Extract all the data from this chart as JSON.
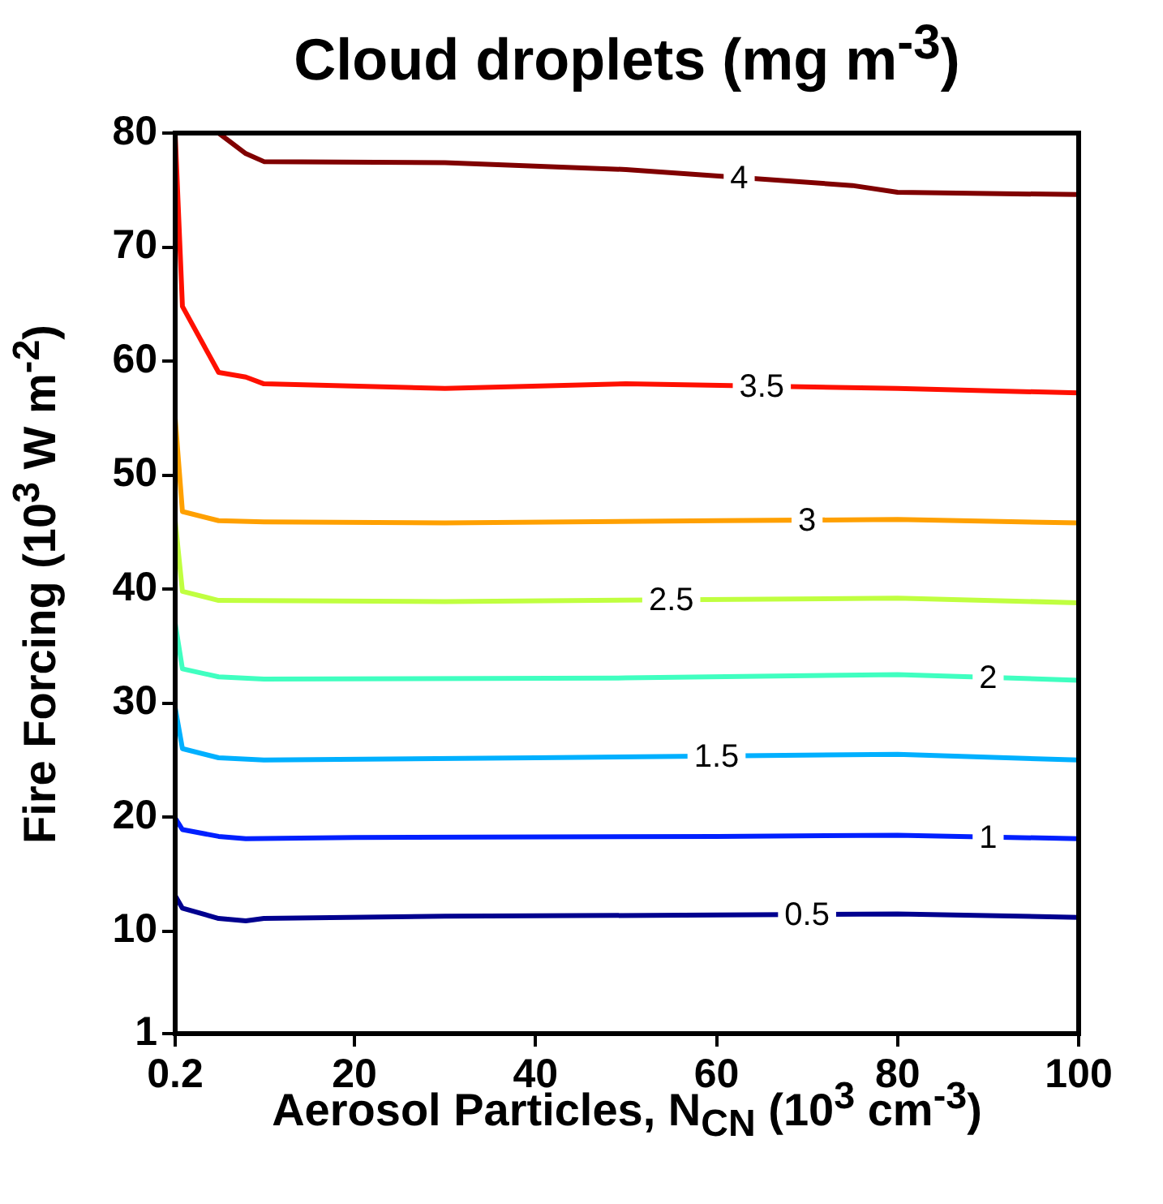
{
  "chart_data": {
    "type": "line",
    "title": "Cloud droplets (mg m$^{-3}$)",
    "xlabel": "Aerosol Particles, N$_{CN}$ (10$^{3}$ cm$^{-3}$)",
    "ylabel": "Fire Forcing (10$^{3}$ W m$^{-2}$)",
    "xlim": [
      0.2,
      100
    ],
    "xticks": [
      0.2,
      20,
      40,
      60,
      80,
      100
    ],
    "ylim": [
      1,
      80
    ],
    "yticks": [
      1,
      10,
      20,
      30,
      40,
      50,
      60,
      70,
      80
    ],
    "grid": false,
    "legend": false,
    "marker": "none",
    "line_style": "solid",
    "series": [
      {
        "name": "0.5",
        "color": "#00008f",
        "x": [
          0.2,
          1,
          5,
          8,
          10,
          30,
          60,
          80,
          100
        ],
        "values": [
          13.1,
          12,
          11.1,
          10.9,
          11.1,
          11.3,
          11.4,
          11.5,
          11.2
        ]
      },
      {
        "name": "1",
        "color": "#0020ff",
        "x": [
          0.2,
          1,
          5,
          8,
          20,
          60,
          80,
          100
        ],
        "values": [
          19.9,
          18.9,
          18.3,
          18.1,
          18.2,
          18.3,
          18.4,
          18.1
        ]
      },
      {
        "name": "1.5",
        "color": "#00b0ff",
        "x": [
          0.2,
          1,
          5,
          10,
          40,
          80,
          100
        ],
        "values": [
          29.6,
          26,
          25.2,
          25,
          25.2,
          25.5,
          25
        ]
      },
      {
        "name": "2",
        "color": "#40ffc0",
        "x": [
          0.2,
          1,
          5,
          10,
          50,
          80,
          100
        ],
        "values": [
          37,
          33,
          32.3,
          32.1,
          32.2,
          32.5,
          32
        ]
      },
      {
        "name": "2.5",
        "color": "#c0ff40",
        "x": [
          0.2,
          1,
          5,
          30,
          80,
          100
        ],
        "values": [
          46,
          39.8,
          39,
          38.9,
          39.2,
          38.8
        ]
      },
      {
        "name": "3",
        "color": "#ffa000",
        "x": [
          0.2,
          1,
          5,
          10,
          30,
          60,
          80,
          100
        ],
        "values": [
          55,
          46.8,
          46,
          45.9,
          45.8,
          46,
          46.1,
          45.8
        ]
      },
      {
        "name": "3.5",
        "color": "#ff1000",
        "x": [
          0.2,
          1,
          5,
          8,
          10,
          30,
          50,
          80,
          100
        ],
        "values": [
          80,
          64.8,
          59,
          58.6,
          58,
          57.6,
          58,
          57.6,
          57.2
        ]
      },
      {
        "name": "4",
        "color": "#800000",
        "x": [
          5,
          8,
          10,
          30,
          50,
          75,
          80,
          100
        ],
        "values": [
          80,
          78.2,
          77.5,
          77.4,
          76.8,
          75.4,
          74.8,
          74.6
        ]
      }
    ]
  }
}
